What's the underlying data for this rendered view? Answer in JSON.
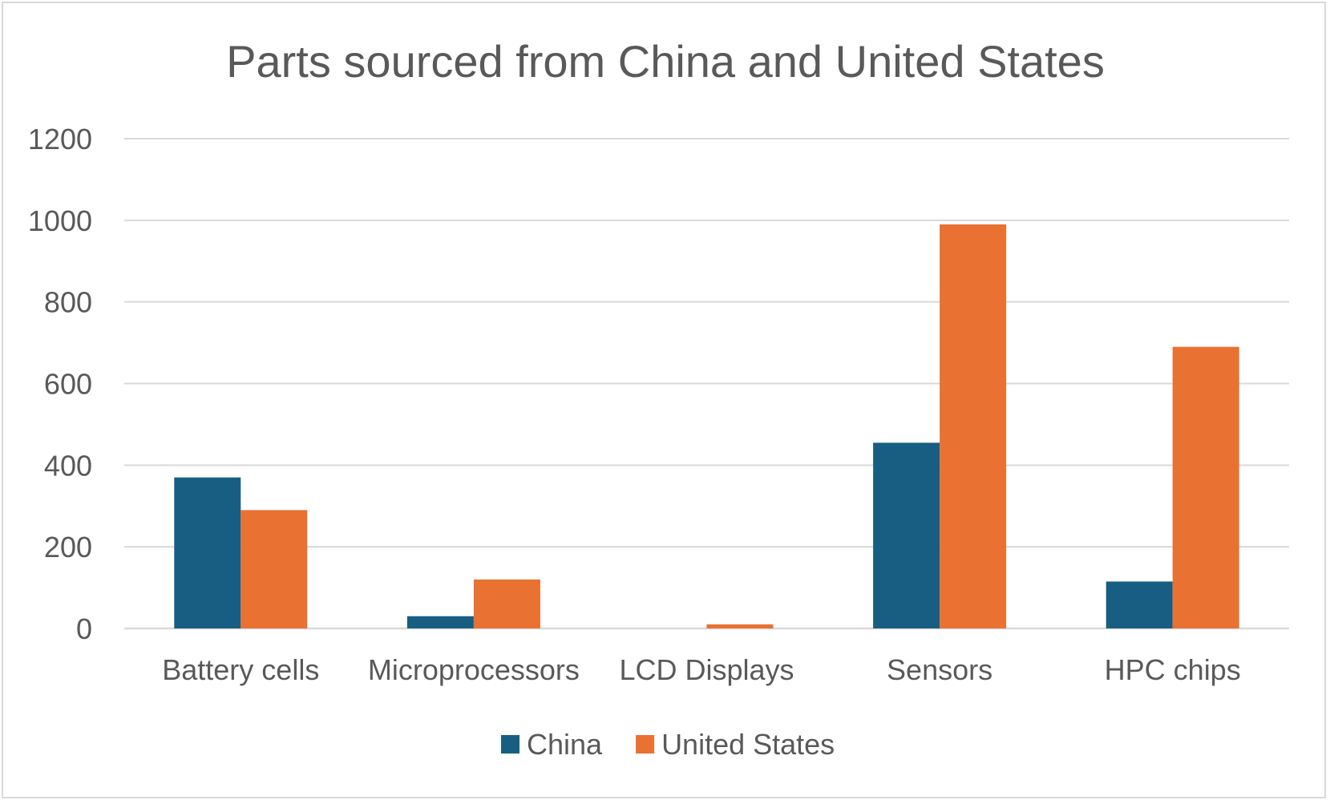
{
  "chart_data": {
    "type": "bar",
    "title": "Parts sourced from China and United States",
    "xlabel": "",
    "ylabel": "",
    "categories": [
      "Battery cells",
      "Microprocessors",
      "LCD Displays",
      "Sensors",
      "HPC chips"
    ],
    "series": [
      {
        "name": "China",
        "values": [
          370,
          30,
          0,
          455,
          115
        ],
        "color": "#175E82"
      },
      {
        "name": "United States",
        "values": [
          290,
          120,
          10,
          990,
          690
        ],
        "color": "#E97132"
      }
    ],
    "ylim": [
      0,
      1200
    ],
    "yticks": [
      0,
      200,
      400,
      600,
      800,
      1000,
      1200
    ],
    "grid": true,
    "legend_position": "bottom"
  }
}
